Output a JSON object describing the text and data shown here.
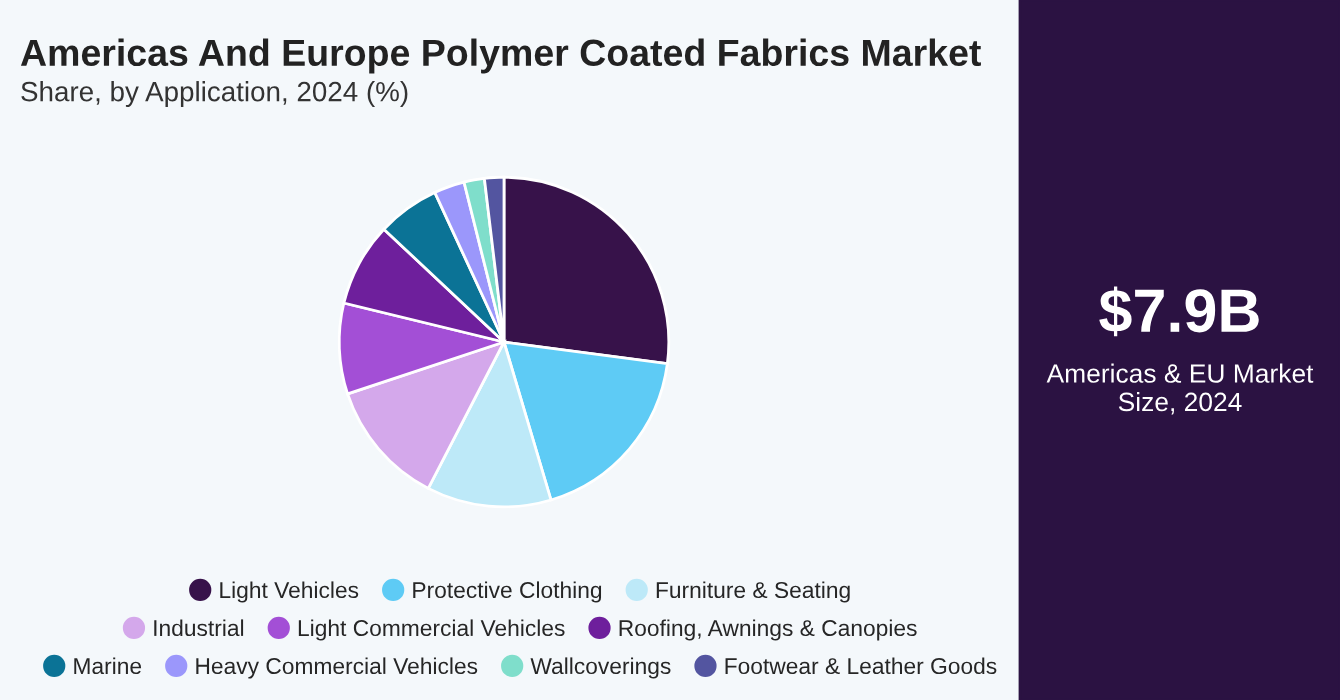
{
  "chart_data": {
    "type": "pie",
    "title": "Americas And Europe Polymer Coated Fabrics Market",
    "subtitle": "Share, by Application, 2024 (%)",
    "categories": [
      "Light Vehicles",
      "Protective Clothing",
      "Furniture & Seating",
      "Industrial",
      "Light Commercial Vehicles",
      "Roofing, Awnings & Canopies",
      "Marine",
      "Heavy Commercial Vehicles",
      "Wallcoverings",
      "Footwear & Leather Goods"
    ],
    "values": [
      27.1,
      18.3,
      12.2,
      12.3,
      8.9,
      8.2,
      6.1,
      3.0,
      2.0,
      1.9
    ],
    "colors": [
      "#37124a",
      "#5ecbf5",
      "#bde9f8",
      "#d4a8eb",
      "#a34fd6",
      "#6e1f9c",
      "#0b7396",
      "#9b97fb",
      "#7fdecb",
      "#5355a0"
    ],
    "legend": "bottom",
    "annotations": [
      "$7.9B",
      "Americas & EU Market Size, 2024"
    ]
  }
}
